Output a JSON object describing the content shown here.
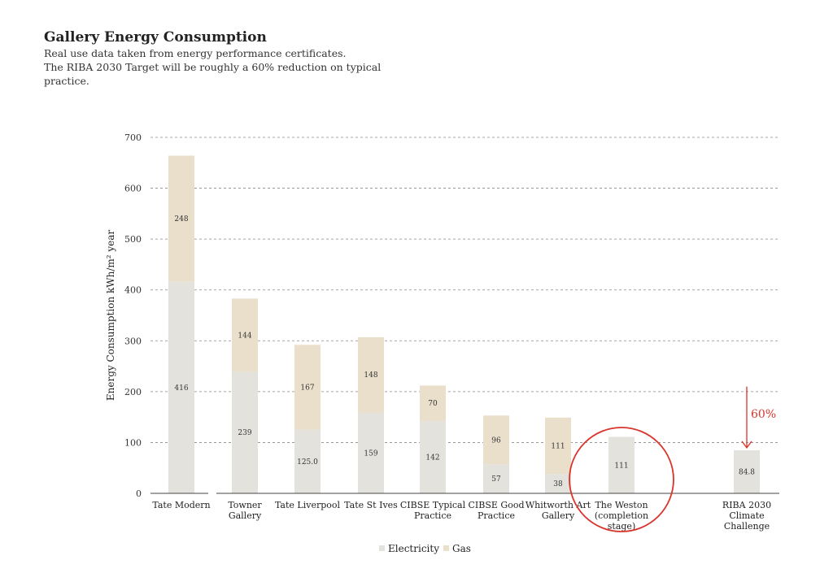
{
  "page": {
    "title": "Gallery Energy Consumption",
    "subtitle_lines": [
      "Real use data taken from energy performance certificates.",
      "The RIBA 2030 Target will be roughly a 60% reduction on typical",
      "practice."
    ]
  },
  "chart_data": {
    "type": "bar",
    "stacked": true,
    "title": "Gallery Energy Consumption",
    "xlabel": "",
    "ylabel": "Energy Consumption kWh/m² year",
    "ylim": [
      0,
      700
    ],
    "yticks": [
      0,
      100,
      200,
      300,
      400,
      500,
      600,
      700
    ],
    "grid": true,
    "legend_position": "bottom-center",
    "categories": [
      [
        "Tate Modern"
      ],
      [
        "Towner",
        "Gallery"
      ],
      [
        "Tate Liverpool"
      ],
      [
        "Tate St Ives"
      ],
      [
        "CIBSE Typical",
        "Practice"
      ],
      [
        "CIBSE Good",
        "Practice"
      ],
      [
        "Whitworth Art",
        "Gallery"
      ],
      [
        "The Weston",
        "(completion",
        "stage)"
      ],
      [
        "RIBA 2030",
        "Climate",
        "Challenge"
      ]
    ],
    "series": [
      {
        "name": "Electricity",
        "color": "#e3e2dc",
        "values": [
          416,
          239,
          125.0,
          159,
          142,
          57,
          38,
          111,
          84.8
        ],
        "labels": [
          "416",
          "239",
          "125.0",
          "159",
          "142",
          "57",
          "38",
          "111",
          "84.8"
        ]
      },
      {
        "name": "Gas",
        "color": "#e9dfcb",
        "values": [
          248,
          144,
          167,
          148,
          70,
          96,
          111,
          0,
          0
        ],
        "labels": [
          "248",
          "144",
          "167",
          "148",
          "70",
          "96",
          "111",
          "",
          ""
        ]
      }
    ],
    "annotations": [
      {
        "type": "circle",
        "target_category_index": 7,
        "color": "#d9342b"
      },
      {
        "type": "arrow",
        "target_category_index": 8,
        "from_value": 210,
        "to_value": 84.8,
        "text": "60%",
        "color": "#d9342b"
      }
    ]
  }
}
